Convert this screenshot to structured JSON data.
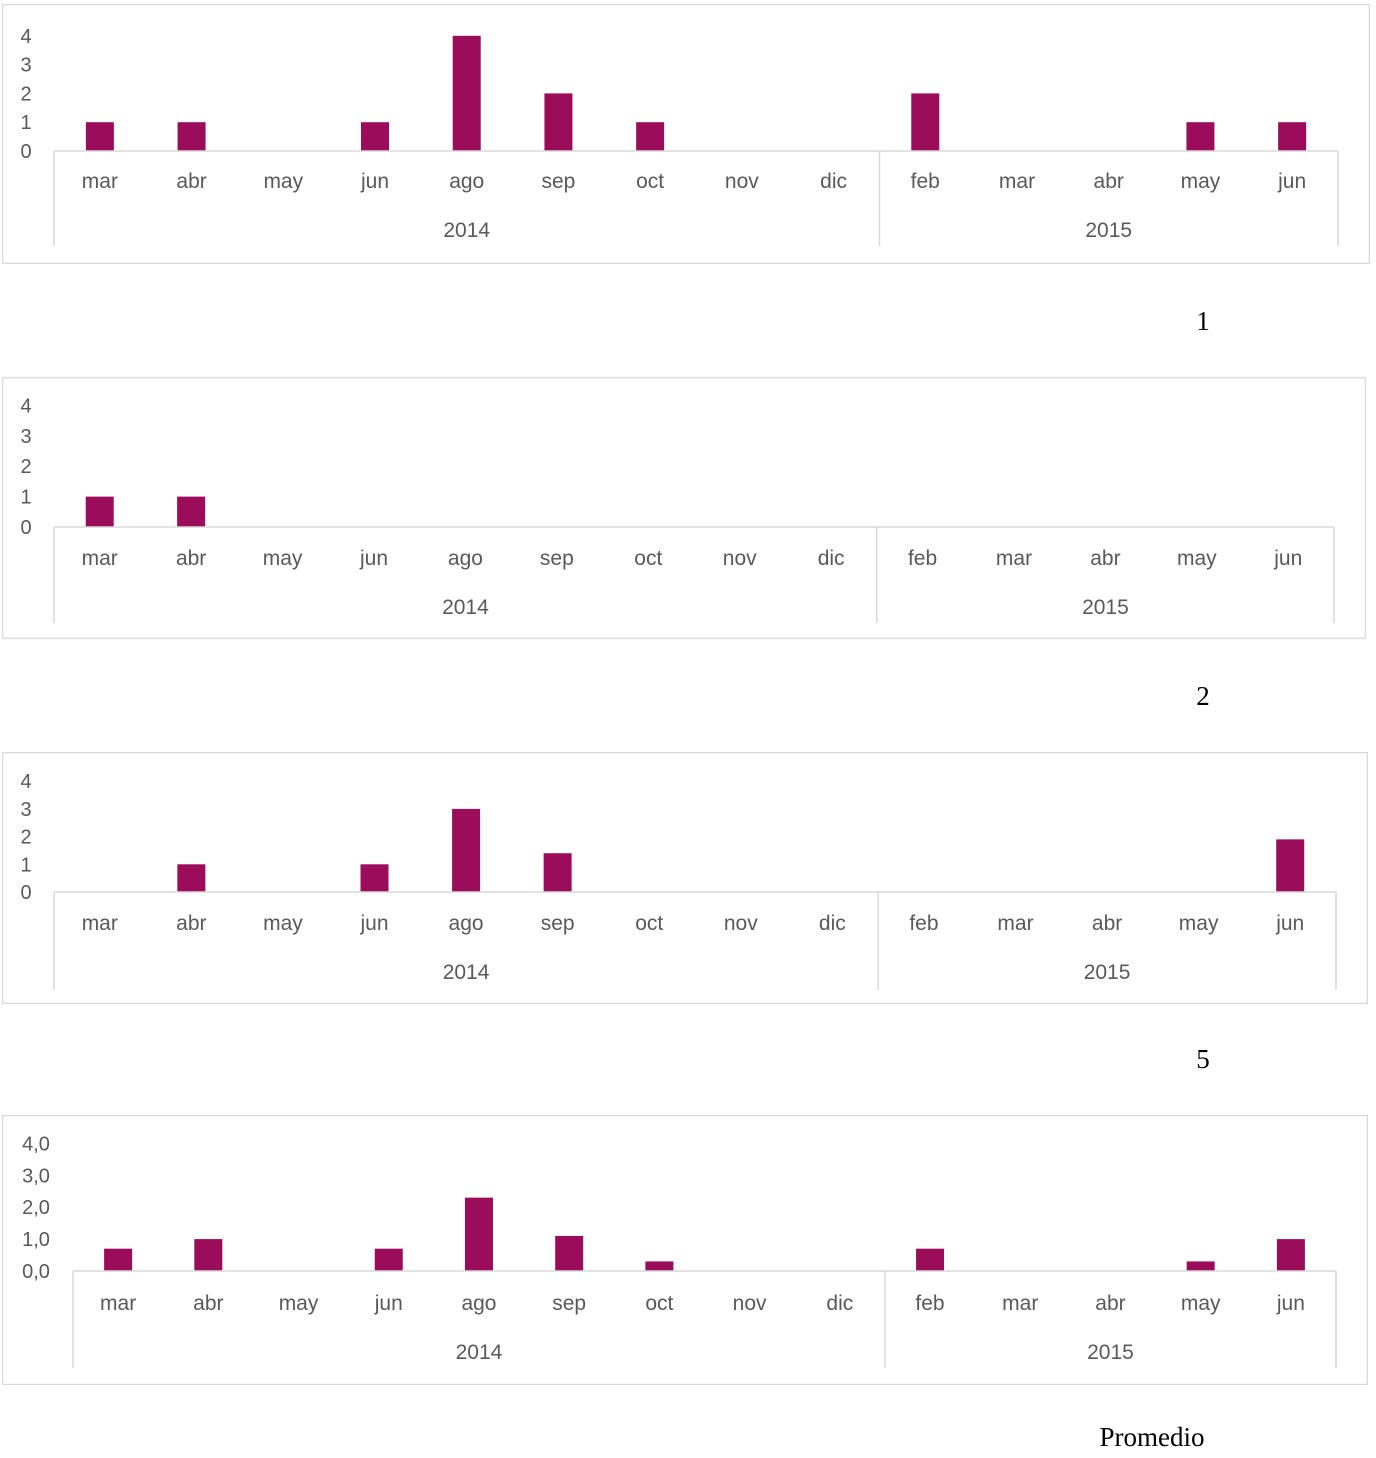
{
  "colors": {
    "bar": "#9b0d5a",
    "axis": "#d9d9d9",
    "frame": "#d9d9d9",
    "text": "#595959"
  },
  "captions": [
    "1",
    "2",
    "5",
    "Promedio"
  ],
  "chart_data": [
    {
      "type": "bar",
      "title": "",
      "categories": [
        "mar",
        "abr",
        "may",
        "jun",
        "ago",
        "sep",
        "oct",
        "nov",
        "dic",
        "feb",
        "mar",
        "abr",
        "may",
        "jun"
      ],
      "groups": [
        {
          "label": "2014",
          "count": 9
        },
        {
          "label": "2015",
          "count": 5
        }
      ],
      "values": [
        1,
        1,
        0,
        1,
        4,
        2,
        1,
        0,
        0,
        2,
        0,
        0,
        1,
        1
      ],
      "yticks": [
        "0",
        "1",
        "2",
        "3",
        "4"
      ],
      "ylim": [
        0,
        4
      ],
      "grid": false,
      "legend": "none"
    },
    {
      "type": "bar",
      "title": "",
      "categories": [
        "mar",
        "abr",
        "may",
        "jun",
        "ago",
        "sep",
        "oct",
        "nov",
        "dic",
        "feb",
        "mar",
        "abr",
        "may",
        "jun"
      ],
      "groups": [
        {
          "label": "2014",
          "count": 9
        },
        {
          "label": "2015",
          "count": 5
        }
      ],
      "values": [
        1,
        1,
        0,
        0,
        0,
        0,
        0,
        0,
        0,
        0,
        0,
        0,
        0,
        0
      ],
      "yticks": [
        "0",
        "1",
        "2",
        "3",
        "4"
      ],
      "ylim": [
        0,
        4
      ],
      "grid": false,
      "legend": "none"
    },
    {
      "type": "bar",
      "title": "",
      "categories": [
        "mar",
        "abr",
        "may",
        "jun",
        "ago",
        "sep",
        "oct",
        "nov",
        "dic",
        "feb",
        "mar",
        "abr",
        "may",
        "jun"
      ],
      "groups": [
        {
          "label": "2014",
          "count": 9
        },
        {
          "label": "2015",
          "count": 5
        }
      ],
      "values": [
        0,
        1,
        0,
        1,
        3,
        1.4,
        0,
        0,
        0,
        0,
        0,
        0,
        0,
        1.9
      ],
      "yticks": [
        "0",
        "1",
        "2",
        "3",
        "4"
      ],
      "ylim": [
        0,
        4
      ],
      "grid": false,
      "legend": "none"
    },
    {
      "type": "bar",
      "title": "",
      "categories": [
        "mar",
        "abr",
        "may",
        "jun",
        "ago",
        "sep",
        "oct",
        "nov",
        "dic",
        "feb",
        "mar",
        "abr",
        "may",
        "jun"
      ],
      "groups": [
        {
          "label": "2014",
          "count": 9
        },
        {
          "label": "2015",
          "count": 5
        }
      ],
      "values": [
        0.7,
        1.0,
        0,
        0.7,
        2.3,
        1.1,
        0.3,
        0,
        0,
        0.7,
        0,
        0,
        0.3,
        1.0
      ],
      "yticks": [
        "0,0",
        "1,0",
        "2,0",
        "3,0",
        "4,0"
      ],
      "ylim": [
        0,
        4
      ],
      "grid": false,
      "legend": "none"
    }
  ]
}
